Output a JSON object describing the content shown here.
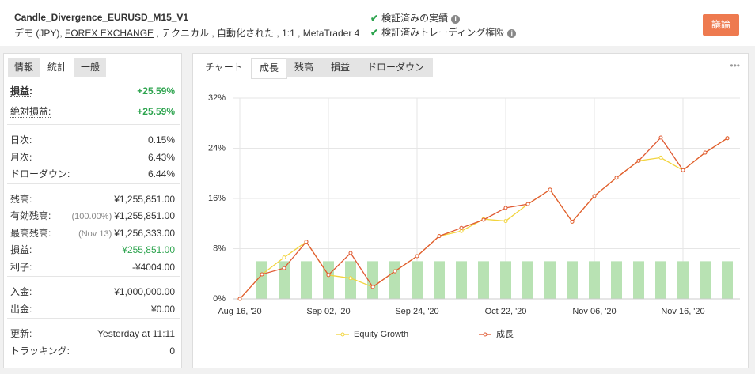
{
  "header": {
    "title": "Candle_Divergence_EURUSD_M15_V1",
    "tags": [
      "デモ (JPY),",
      "FOREX EXCHANGE",
      ", テクニカル , 自動化された , 1:1 , MetaTrader 4"
    ],
    "verified": [
      "検証済みの実績",
      "検証済みトレーディング権限"
    ],
    "button": "議論"
  },
  "sidebar": {
    "tabs": [
      "情報",
      "統計",
      "一般"
    ],
    "active_tab": 1,
    "sections": [
      [
        {
          "label": "損益:",
          "value": "+25.59%",
          "color": "#2ea44f"
        },
        {
          "label": "絶対損益:",
          "value": "+25.59%",
          "color": "#2ea44f"
        }
      ],
      [
        {
          "label": "日次:",
          "value": "0.15%"
        },
        {
          "label": "月次:",
          "value": "6.43%"
        },
        {
          "label": "ドローダウン:",
          "value": "6.44%"
        }
      ],
      [
        {
          "label": "残高:",
          "value": "¥1,255,851.00"
        },
        {
          "label": "有効残高:",
          "note": "(100.00%)",
          "value": "¥1,255,851.00"
        },
        {
          "label": "最高残高:",
          "note": "(Nov 13)",
          "value": "¥1,256,333.00"
        },
        {
          "label": "損益:",
          "value": "¥255,851.00",
          "color": "#2ea44f"
        },
        {
          "label": "利子:",
          "value": "-¥4004.00"
        }
      ],
      [
        {
          "label": "入金:",
          "value": "¥1,000,000.00"
        },
        {
          "label": "出金:",
          "value": "¥0.00"
        }
      ],
      [
        {
          "label": "更新:",
          "value": "Yesterday at 11:11"
        },
        {
          "label": "トラッキング:",
          "value": "0"
        }
      ]
    ]
  },
  "chart_tabs": {
    "tabs": [
      "チャート",
      "成長",
      "残高",
      "損益",
      "ドローダウン"
    ],
    "active_tab": 1,
    "menu": "•••"
  },
  "chart_data": {
    "type": "line",
    "categories": [
      "Aug 16, '20",
      null,
      null,
      null,
      "Sep 02, '20",
      null,
      null,
      null,
      "Sep 24, '20",
      null,
      null,
      null,
      "Oct 22, '20",
      null,
      null,
      null,
      "Nov 06, '20",
      null,
      null,
      null,
      "Nov 16, '20",
      null,
      null
    ],
    "series": [
      {
        "name": "Equity Growth",
        "color": "#f2d43d",
        "values": [
          0,
          3.9,
          6.6,
          9.1,
          3.8,
          3.3,
          1.9,
          4.4,
          6.8,
          10.0,
          10.8,
          12.7,
          12.4,
          15.1,
          17.4,
          12.3,
          16.4,
          19.3,
          22.0,
          22.5,
          20.5,
          23.3,
          25.6
        ]
      },
      {
        "name": "成長",
        "color": "#e05a33",
        "values": [
          0,
          3.9,
          4.9,
          9.1,
          3.8,
          7.3,
          1.9,
          4.4,
          6.8,
          10.0,
          11.3,
          12.6,
          14.5,
          15.1,
          17.4,
          12.3,
          16.4,
          19.3,
          22.0,
          25.7,
          20.5,
          23.3,
          25.6
        ]
      }
    ],
    "bars": {
      "color": "#b8e2b3",
      "values": [
        null,
        6,
        6,
        6,
        6,
        6,
        6,
        6,
        6,
        6,
        6,
        6,
        6,
        6,
        6,
        6,
        6,
        6,
        6,
        6,
        6,
        6,
        6
      ]
    },
    "ylim": [
      0,
      32
    ],
    "yticks": [
      {
        "value": 0,
        "label": "0%"
      },
      {
        "value": 8,
        "label": "8%"
      },
      {
        "value": 16,
        "label": "16%"
      },
      {
        "value": 24,
        "label": "24%"
      },
      {
        "value": 32,
        "label": "32%"
      }
    ],
    "grid": true
  }
}
